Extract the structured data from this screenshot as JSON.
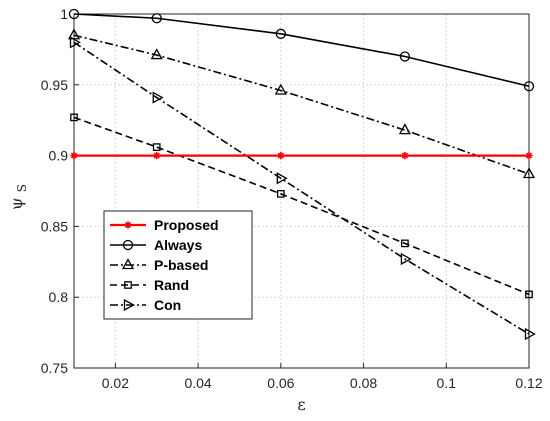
{
  "chart_data": {
    "type": "line",
    "title": "",
    "xlabel": "ε",
    "ylabel_main": "ψ",
    "ylabel_sub": "S",
    "xlim": [
      0.01,
      0.12
    ],
    "ylim": [
      0.75,
      1.0
    ],
    "x_ticks": [
      0.02,
      0.04,
      0.06,
      0.08,
      0.1,
      0.12
    ],
    "x_tick_labels": [
      "0.02",
      "0.04",
      "0.06",
      "0.08",
      "0.1",
      "0.12"
    ],
    "y_ticks": [
      0.75,
      0.8,
      0.85,
      0.9,
      0.95,
      1.0
    ],
    "y_tick_labels": [
      "0.75",
      "0.8",
      "0.85",
      "0.9",
      "0.95",
      "1"
    ],
    "grid": true,
    "legend_position": "bottom-left",
    "x": [
      0.01,
      0.03,
      0.06,
      0.09,
      0.12
    ],
    "series": [
      {
        "name": "Proposed",
        "values": [
          0.9,
          0.9,
          0.9,
          0.9,
          0.9
        ],
        "color": "#ff0000",
        "marker": "star",
        "dash": "solid"
      },
      {
        "name": "Always",
        "values": [
          1.0,
          0.997,
          0.986,
          0.97,
          0.949
        ],
        "color": "#000000",
        "marker": "circle",
        "dash": "solid"
      },
      {
        "name": "P-based",
        "values": [
          0.985,
          0.971,
          0.946,
          0.918,
          0.887
        ],
        "color": "#000000",
        "marker": "triangle-up",
        "dash": "dashdot"
      },
      {
        "name": "Rand",
        "values": [
          0.927,
          0.906,
          0.873,
          0.838,
          0.802
        ],
        "color": "#000000",
        "marker": "square",
        "dash": "dashed"
      },
      {
        "name": "Con",
        "values": [
          0.98,
          0.941,
          0.884,
          0.827,
          0.774
        ],
        "color": "#000000",
        "marker": "triangle-right",
        "dash": "dashdot"
      }
    ]
  }
}
